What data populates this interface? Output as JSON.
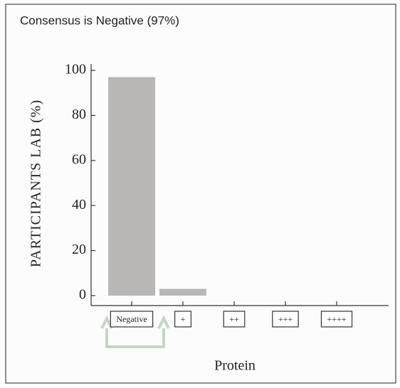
{
  "chart_data": {
    "type": "bar",
    "title": "Consensus is Negative (97%)",
    "y_label": "PARTICIPANTS LAB (%)",
    "x_label": "Protein",
    "categories": [
      "Negative",
      "+",
      "++",
      "+++",
      "++++"
    ],
    "values": [
      97,
      3,
      0,
      0,
      0
    ],
    "color": "#b9b7b6",
    "ylim": [
      0,
      100
    ],
    "yticks": [
      0,
      20,
      40,
      60,
      80,
      100
    ],
    "grid": false
  }
}
